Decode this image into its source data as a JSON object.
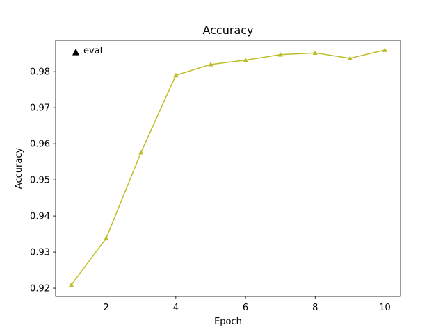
{
  "chart_data": {
    "type": "line",
    "title": "Accuracy",
    "xlabel": "Epoch",
    "ylabel": "Accuracy",
    "xlim": [
      0.55,
      10.45
    ],
    "ylim": [
      0.9177,
      0.9887
    ],
    "xticks": [
      2,
      4,
      6,
      8,
      10
    ],
    "xtick_labels": [
      "2",
      "4",
      "6",
      "8",
      "10"
    ],
    "yticks": [
      0.92,
      0.93,
      0.94,
      0.95,
      0.96,
      0.97,
      0.98
    ],
    "ytick_labels": [
      "0.92",
      "0.93",
      "0.94",
      "0.95",
      "0.96",
      "0.97",
      "0.98"
    ],
    "grid": false,
    "legend": {
      "placement": "top-left",
      "frame": false
    },
    "series": [
      {
        "name": "eval",
        "color": "#bcbd22",
        "marker": "triangle-up",
        "legend_marker_glyph": "▲",
        "x": [
          1,
          2,
          3,
          4,
          5,
          6,
          7,
          8,
          9,
          10
        ],
        "y": [
          0.9209,
          0.9338,
          0.9576,
          0.979,
          0.982,
          0.9832,
          0.9847,
          0.9852,
          0.9837,
          0.986
        ]
      }
    ]
  }
}
